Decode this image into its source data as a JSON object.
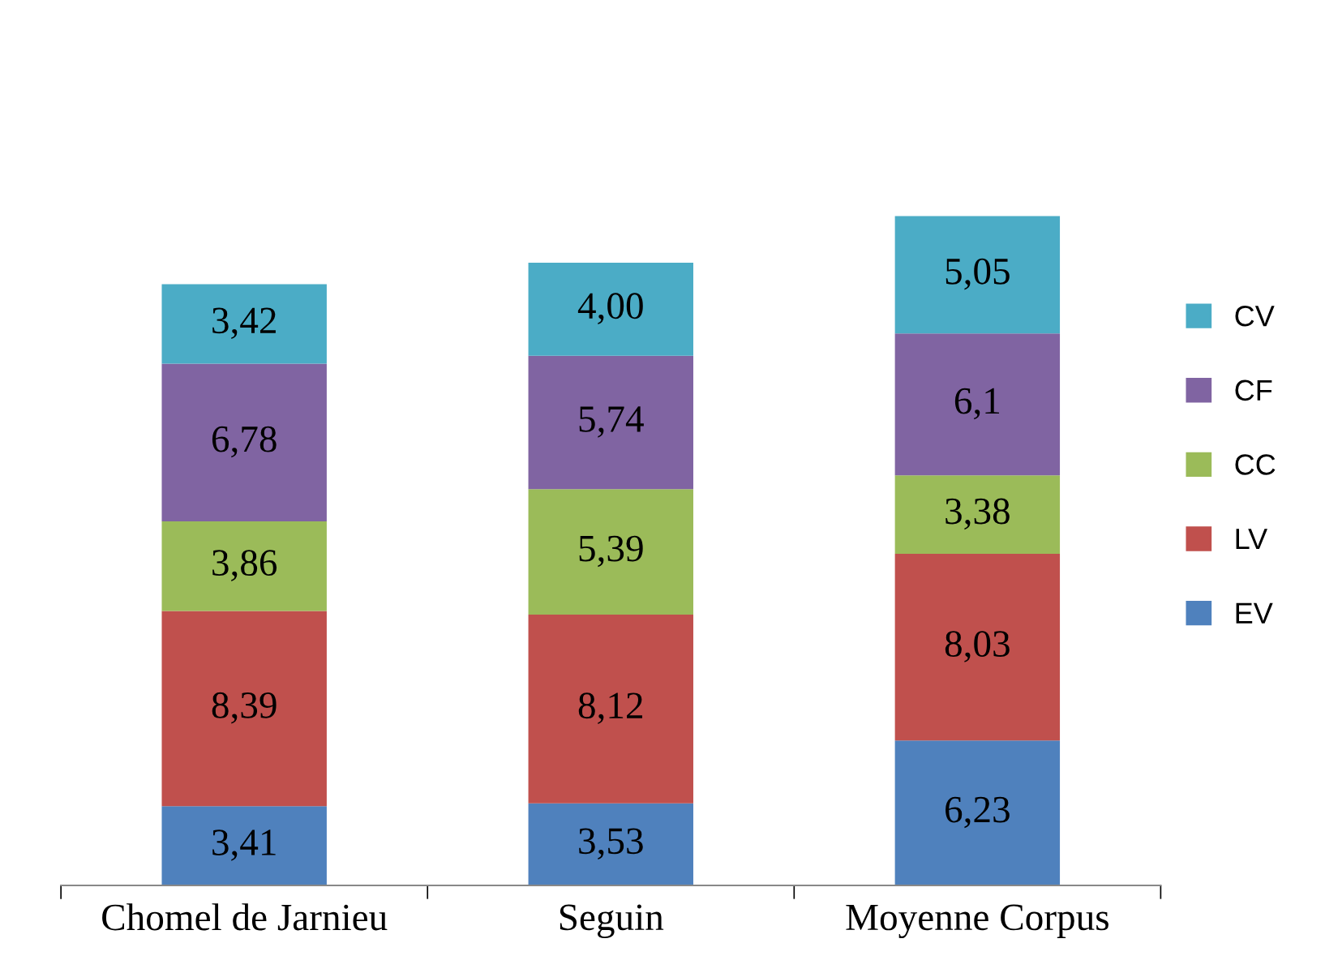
{
  "chart_data": {
    "type": "bar",
    "stacked": true,
    "categories": [
      "Chomel de Jarnieu",
      "Seguin",
      "Moyenne Corpus"
    ],
    "series": [
      {
        "name": "EV",
        "color": "#4f81bd",
        "values": [
          3.41,
          3.53,
          6.23
        ],
        "value_labels": [
          "3,41",
          "3,53",
          "6,23"
        ]
      },
      {
        "name": "LV",
        "color": "#c0504d",
        "values": [
          8.39,
          8.12,
          8.03
        ],
        "value_labels": [
          "8,39",
          "8,12",
          "8,03"
        ]
      },
      {
        "name": "CC",
        "color": "#9bbb59",
        "values": [
          3.86,
          5.39,
          3.38
        ],
        "value_labels": [
          "3,86",
          "5,39",
          "3,38"
        ]
      },
      {
        "name": "CF",
        "color": "#8064a2",
        "values": [
          6.78,
          5.74,
          6.1
        ],
        "value_labels": [
          "6,78",
          "5,74",
          "6,1"
        ]
      },
      {
        "name": "CV",
        "color": "#4bacc6",
        "values": [
          3.42,
          4.0,
          5.05
        ],
        "value_labels": [
          "3,42",
          "4,00",
          "5,05"
        ]
      }
    ],
    "legend": "right"
  }
}
